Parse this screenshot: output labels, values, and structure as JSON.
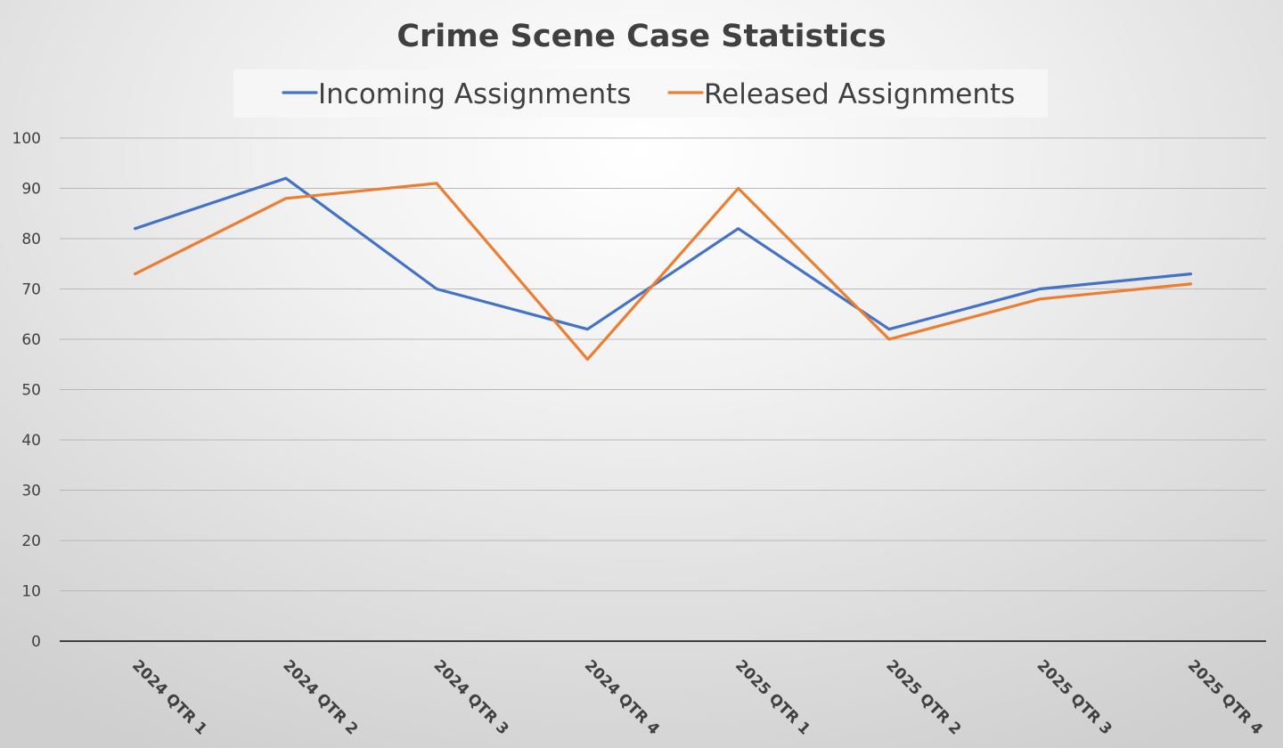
{
  "chart_data": {
    "type": "line",
    "title": "Crime Scene Case Statistics",
    "categories": [
      "2024 QTR 1",
      "2024 QTR 2",
      "2024 QTR 3",
      "2024 QTR 4",
      "2025 QTR 1",
      "2025 QTR 2",
      "2025 QTR 3",
      "2025 QTR 4"
    ],
    "series": [
      {
        "name": "Incoming Assignments",
        "color": "#4472C4",
        "values": [
          82,
          92,
          70,
          62,
          82,
          62,
          70,
          73
        ]
      },
      {
        "name": "Released Assignments",
        "color": "#ED7D31",
        "values": [
          73,
          88,
          91,
          56,
          90,
          60,
          68,
          71
        ]
      }
    ],
    "xlabel": "",
    "ylabel": "",
    "ylim": [
      0,
      100
    ],
    "yticks": [
      "0",
      "10",
      "20",
      "30",
      "40",
      "50",
      "60",
      "70",
      "80",
      "90",
      "100"
    ],
    "grid": true,
    "legend_position": "top"
  }
}
